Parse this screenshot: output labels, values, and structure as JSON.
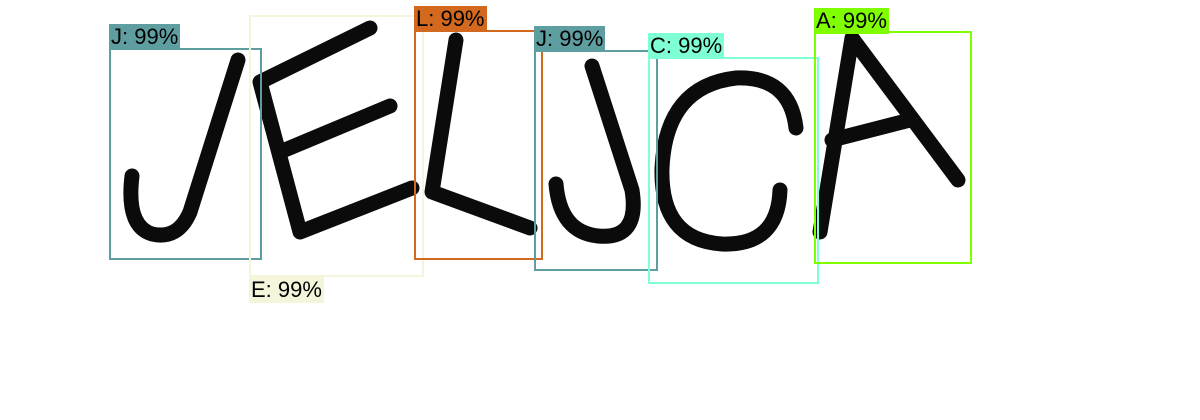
{
  "detections": [
    {
      "label": "J: 99%",
      "color": "#5f9ea0"
    },
    {
      "label": "E: 99%",
      "color": "#f5f5dc"
    },
    {
      "label": "L: 99%",
      "color": "#d2691e"
    },
    {
      "label": "J: 99%",
      "color": "#5f9ea0"
    },
    {
      "label": "C: 99%",
      "color": "#7fffd4"
    },
    {
      "label": "A: 99%",
      "color": "#7fff00"
    }
  ]
}
